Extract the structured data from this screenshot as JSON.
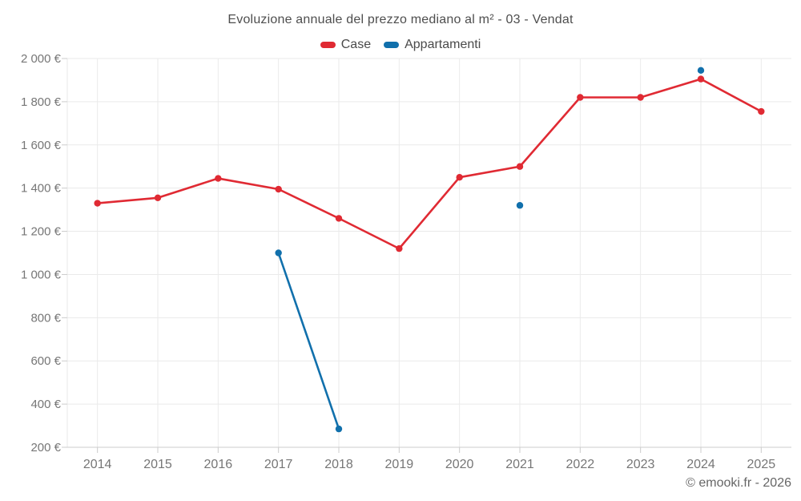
{
  "footer": "© emooki.fr - 2026",
  "chart_data": {
    "type": "line",
    "title": "Evoluzione annuale del prezzo mediano al m² - 03 - Vendat",
    "xlabel": "",
    "ylabel": "",
    "grid": true,
    "legend_position": "top",
    "categories": [
      "2014",
      "2015",
      "2016",
      "2017",
      "2018",
      "2019",
      "2020",
      "2021",
      "2022",
      "2023",
      "2024",
      "2025"
    ],
    "series": [
      {
        "name": "Case",
        "color": "#e02a33",
        "values": [
          1330,
          1355,
          1445,
          1395,
          1260,
          1120,
          1450,
          1500,
          1820,
          1820,
          1905,
          1755
        ]
      },
      {
        "name": "Appartamenti",
        "color": "#1170ac",
        "values": [
          null,
          null,
          null,
          1100,
          285,
          null,
          null,
          1320,
          null,
          null,
          1945,
          null
        ]
      }
    ],
    "ylim": [
      200,
      2000
    ],
    "y_ticks": [
      {
        "value": 200,
        "label": "200 €"
      },
      {
        "value": 400,
        "label": "400 €"
      },
      {
        "value": 600,
        "label": "600 €"
      },
      {
        "value": 800,
        "label": "800 €"
      },
      {
        "value": 1000,
        "label": "1 000 €"
      },
      {
        "value": 1200,
        "label": "1 200 €"
      },
      {
        "value": 1400,
        "label": "1 400 €"
      },
      {
        "value": 1600,
        "label": "1 600 €"
      },
      {
        "value": 1800,
        "label": "1 800 €"
      },
      {
        "value": 2000,
        "label": "2 000 €"
      }
    ]
  }
}
